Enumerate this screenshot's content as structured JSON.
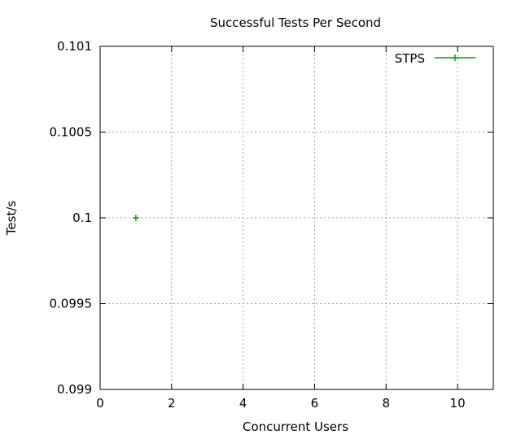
{
  "chart_data": {
    "type": "line",
    "title": "Successful Tests Per Second",
    "xlabel": "Concurrent Users",
    "ylabel": "Test/s",
    "xlim": [
      0,
      11
    ],
    "ylim": [
      0.099,
      0.101
    ],
    "x_ticks": [
      0,
      2,
      4,
      6,
      8,
      10
    ],
    "x_tick_labels": [
      "0",
      "2",
      "4",
      "6",
      "8",
      "10"
    ],
    "y_ticks": [
      0.099,
      0.0995,
      0.1,
      0.1005,
      0.101
    ],
    "y_tick_labels": [
      "0.099",
      "0.0995",
      "0.1",
      "0.1005",
      "0.101"
    ],
    "grid": true,
    "legend_position": "top-right",
    "series": [
      {
        "name": "STPS",
        "color": "#00a000",
        "marker": "plus",
        "points": [
          {
            "x": 1,
            "y": 0.1
          }
        ]
      }
    ]
  }
}
